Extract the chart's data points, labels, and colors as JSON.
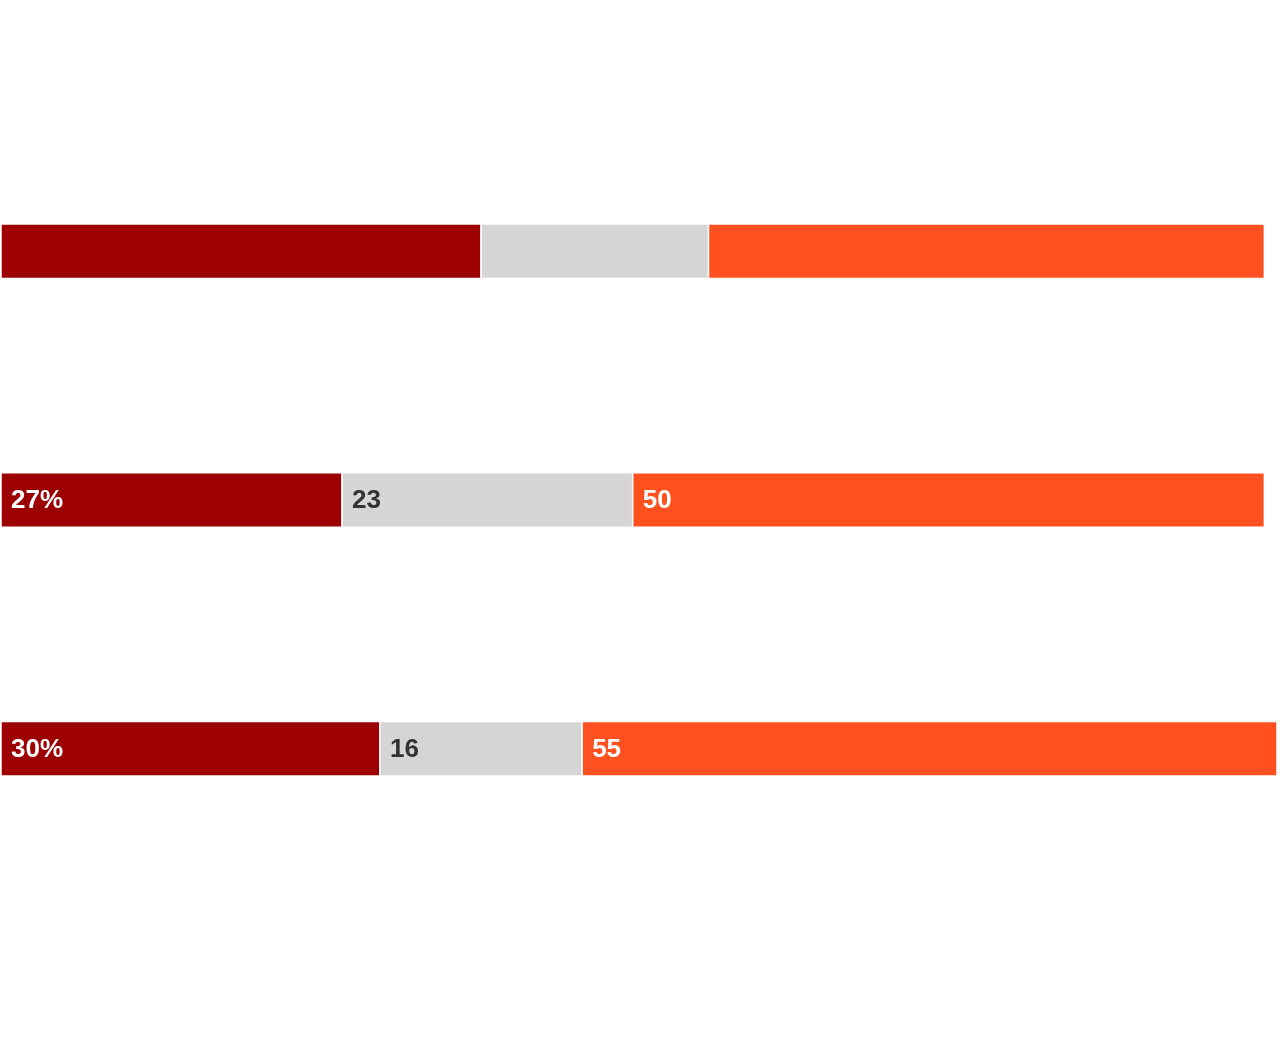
{
  "chart_data": {
    "type": "bar",
    "orientation": "horizontal",
    "stacked": true,
    "categories": [
      null,
      null,
      null
    ],
    "series": [
      {
        "color": "#9c0000",
        "values": [
          38,
          27,
          30
        ],
        "value_labels": [
          null,
          "27%",
          "30%"
        ]
      },
      {
        "color": "#d5d5d5",
        "values": [
          18,
          23,
          16
        ],
        "value_labels": [
          null,
          "23",
          "16"
        ]
      },
      {
        "color": "#ff5020",
        "values": [
          44,
          50,
          55
        ],
        "value_labels": [
          null,
          "50",
          "55"
        ]
      }
    ]
  }
}
